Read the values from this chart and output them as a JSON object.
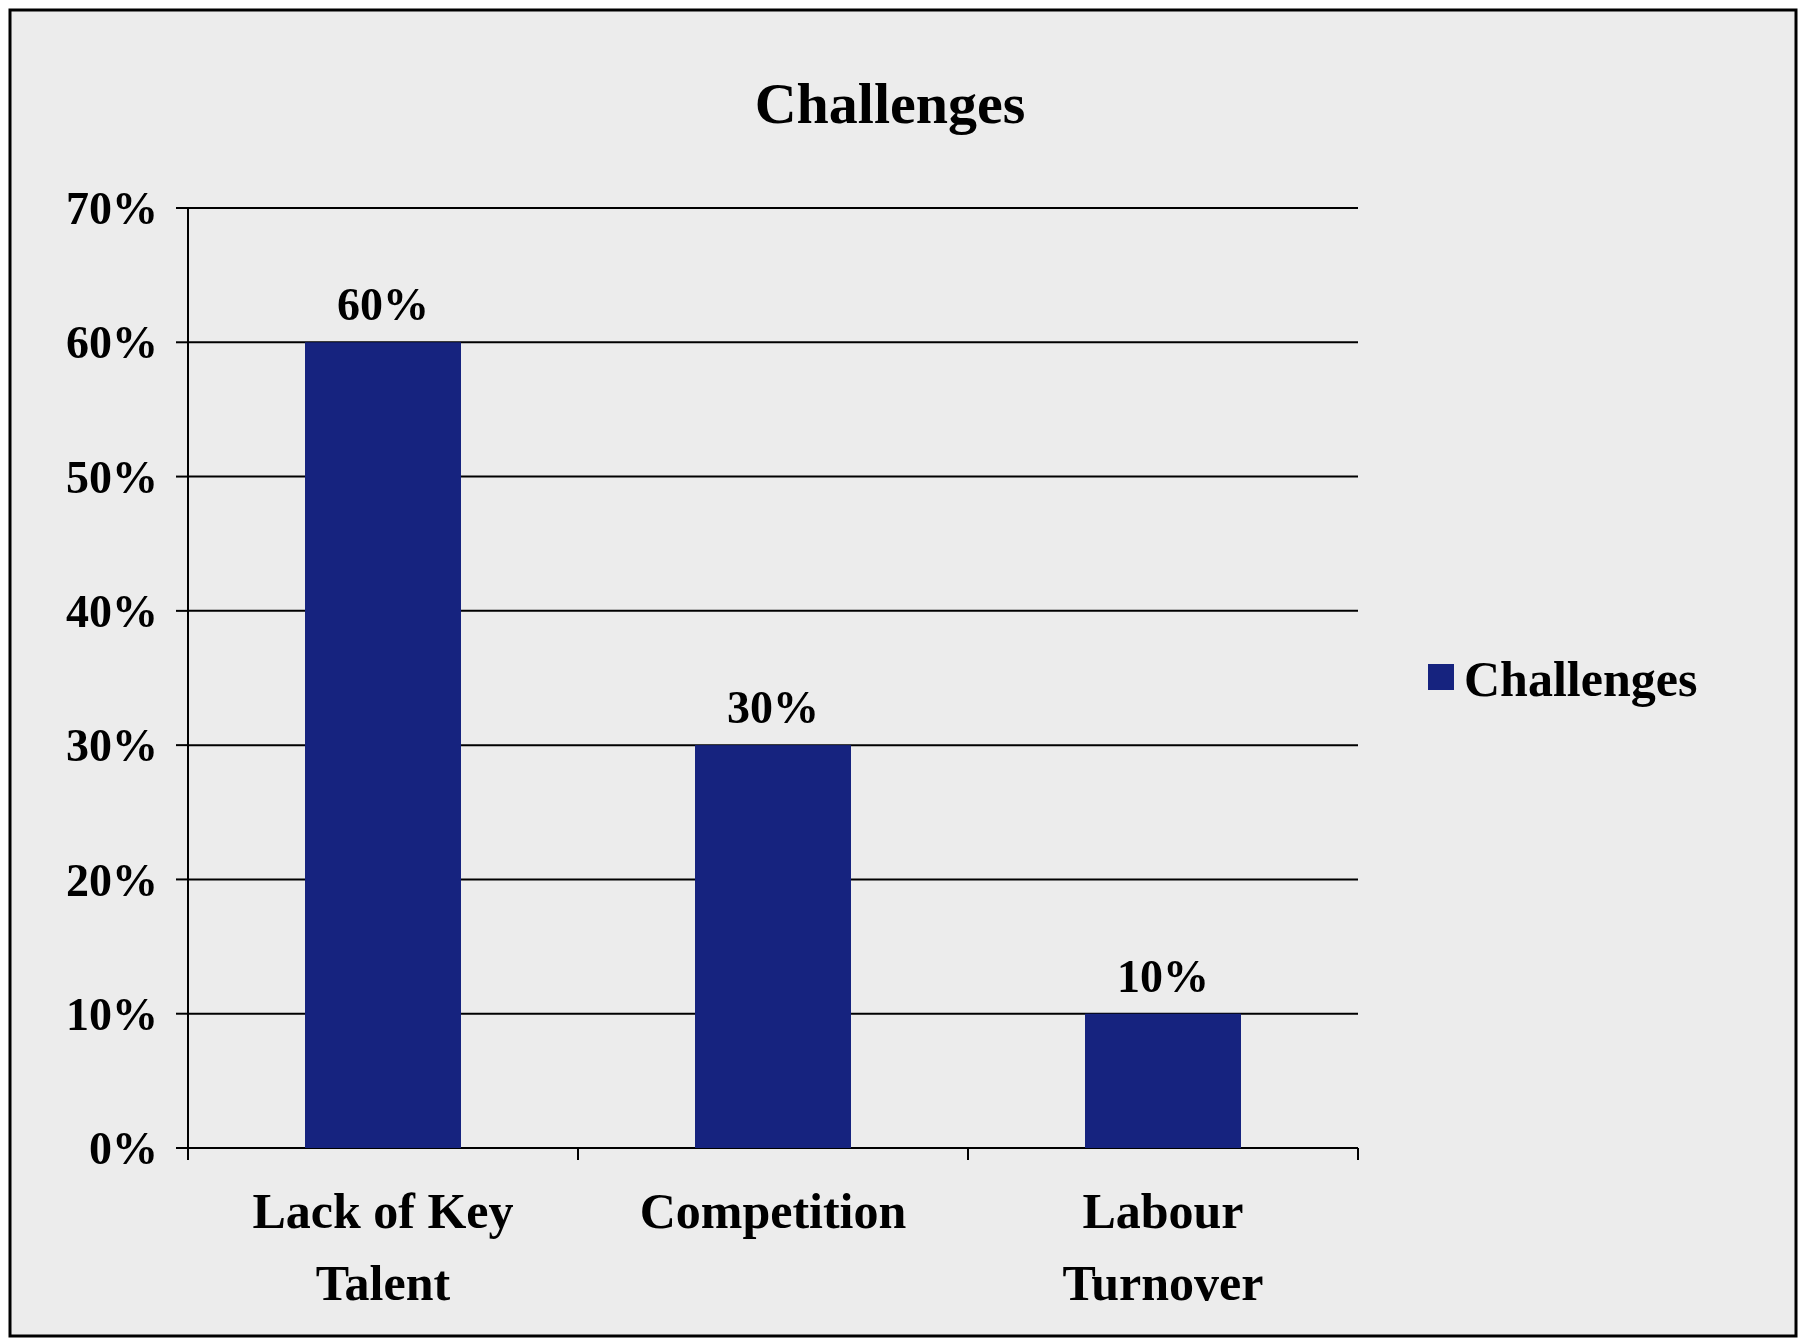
{
  "chart_data": {
    "type": "bar",
    "title": "Challenges",
    "categories": [
      "Lack of Key Talent",
      "Competition",
      "Labour Turnover"
    ],
    "series": [
      {
        "name": "Challenges",
        "color": "#16237f",
        "values": [
          60,
          30,
          10
        ]
      }
    ],
    "ylim": [
      0,
      70
    ],
    "yticks": [
      {
        "value": 0,
        "label": "0%"
      },
      {
        "value": 10,
        "label": "10%"
      },
      {
        "value": 20,
        "label": "20%"
      },
      {
        "value": 30,
        "label": "30%"
      },
      {
        "value": 40,
        "label": "40%"
      },
      {
        "value": 50,
        "label": "50%"
      },
      {
        "value": 60,
        "label": "60%"
      },
      {
        "value": 70,
        "label": "70%"
      }
    ],
    "value_labels": [
      "60%",
      "30%",
      "10%"
    ],
    "grid": "y",
    "legend": "right"
  }
}
